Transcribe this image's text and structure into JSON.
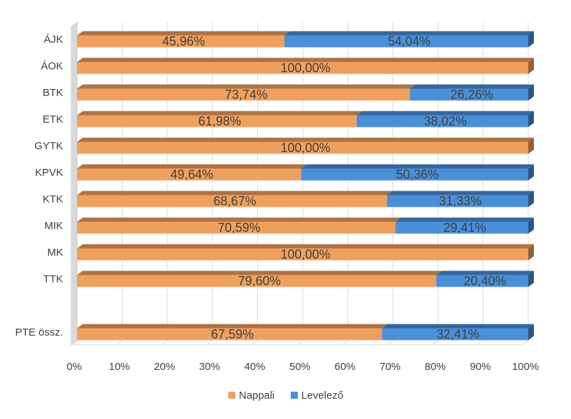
{
  "chart_data": {
    "type": "bar",
    "orientation": "horizontal",
    "stacked": "percent",
    "categories": [
      "ÁJK",
      "ÁOK",
      "BTK",
      "ETK",
      "GYTK",
      "KPVK",
      "KTK",
      "MIK",
      "MK",
      "TTK",
      "",
      "PTE össz."
    ],
    "series": [
      {
        "name": "Nappali",
        "color": "#F0A05E",
        "values": [
          45.96,
          100,
          73.74,
          61.98,
          100,
          49.64,
          68.67,
          70.59,
          100,
          79.6,
          null,
          67.59
        ],
        "labels": [
          "45,96%",
          "100,00%",
          "73,74%",
          "61,98%",
          "100,00%",
          "49,64%",
          "68,67%",
          "70,59%",
          "100,00%",
          "79,60%",
          "",
          "67,59%"
        ]
      },
      {
        "name": "Levelező",
        "color": "#4A90D9",
        "values": [
          54.04,
          0,
          26.26,
          38.02,
          0,
          50.36,
          31.33,
          29.41,
          0,
          20.4,
          null,
          32.41
        ],
        "labels": [
          "54,04%",
          "",
          "26,26%",
          "38,02%",
          "",
          "50,36%",
          "31,33%",
          "29,41%",
          "",
          "20,40%",
          "",
          "32,41%"
        ]
      }
    ],
    "x_ticks": [
      "0%",
      "10%",
      "20%",
      "30%",
      "40%",
      "50%",
      "60%",
      "70%",
      "80%",
      "90%",
      "100%"
    ],
    "xlim": [
      0,
      100
    ],
    "grid": true,
    "legend_position": "bottom",
    "legend": [
      "Nappali",
      "Levelező"
    ]
  }
}
